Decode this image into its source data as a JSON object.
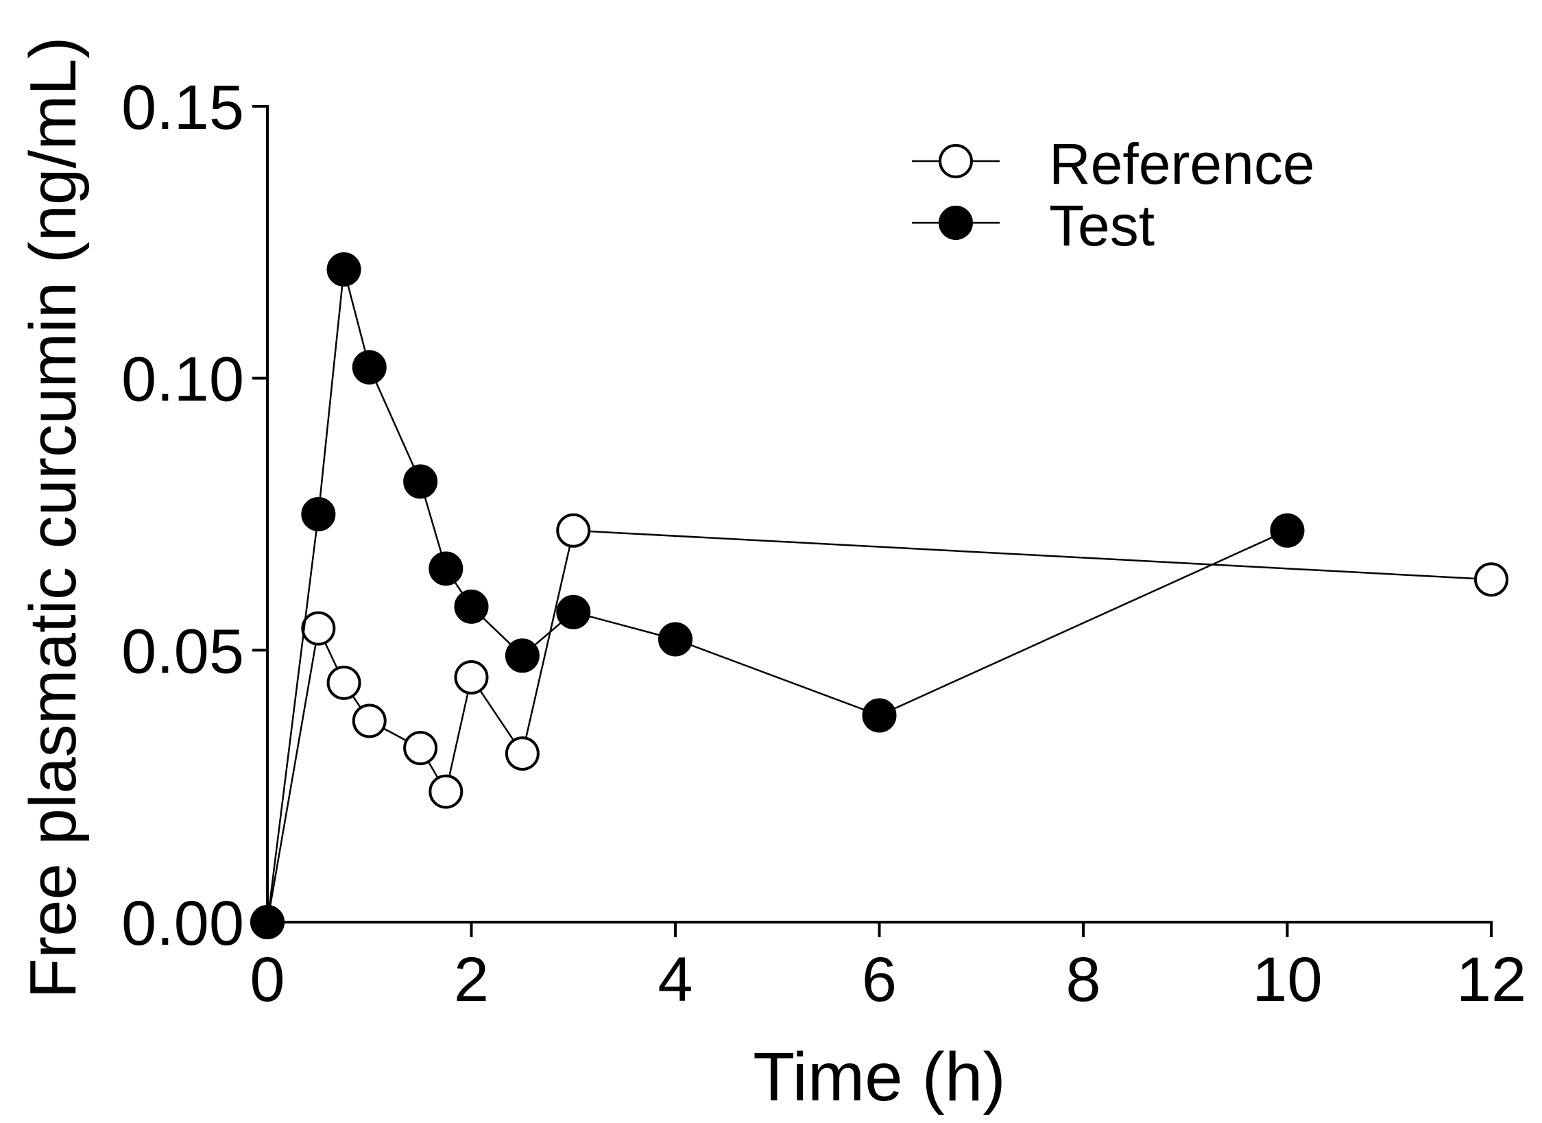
{
  "chart_data": {
    "type": "line",
    "title": "",
    "xlabel": "Time (h)",
    "ylabel": "Free plasmatic curcumin (ng/mL)",
    "xlim": [
      0,
      12
    ],
    "ylim": [
      0,
      0.15
    ],
    "x_ticks": [
      0,
      2,
      4,
      6,
      8,
      10,
      12
    ],
    "x_tick_labels": [
      "0",
      "2",
      "4",
      "6",
      "8",
      "10",
      "12"
    ],
    "y_ticks": [
      0,
      0.05,
      0.1,
      0.15
    ],
    "y_tick_labels": [
      "0.00",
      "0.05",
      "0.10",
      "0.15"
    ],
    "grid": false,
    "legend_position": "top-right",
    "series": [
      {
        "name": "Reference",
        "marker": "open-circle",
        "x": [
          0,
          0.5,
          0.75,
          1,
          1.5,
          1.75,
          2,
          2.5,
          3,
          12
        ],
        "values": [
          0,
          0.054,
          0.044,
          0.037,
          0.032,
          0.024,
          0.045,
          0.031,
          0.072,
          0.063
        ]
      },
      {
        "name": "Test",
        "marker": "filled-circle",
        "x": [
          0,
          0.5,
          0.75,
          1,
          1.5,
          1.75,
          2,
          2.5,
          3,
          4,
          6,
          10
        ],
        "values": [
          0,
          0.075,
          0.12,
          0.102,
          0.081,
          0.065,
          0.058,
          0.049,
          0.057,
          0.052,
          0.038,
          0.072
        ]
      }
    ],
    "colors": {
      "line": "#000000",
      "open_fill": "#ffffff",
      "filled_fill": "#000000"
    }
  }
}
